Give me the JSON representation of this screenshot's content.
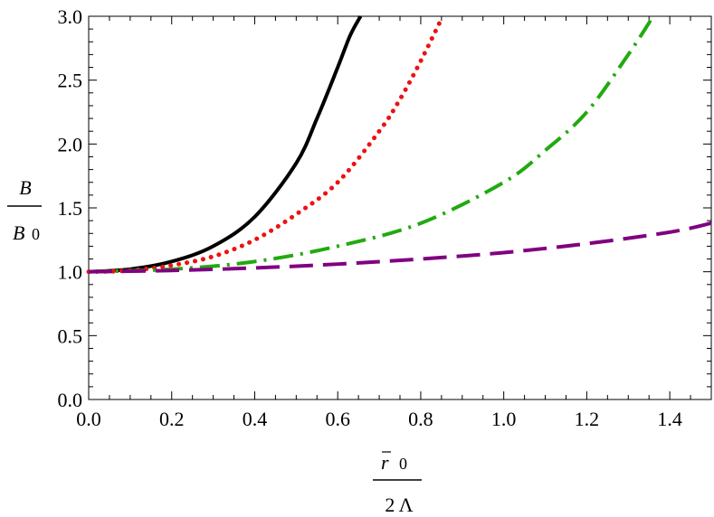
{
  "chart_data": {
    "type": "line",
    "xlim": [
      0.0,
      1.5
    ],
    "ylim": [
      0.0,
      3.0
    ],
    "x_ticks": [
      "0.0",
      "0.2",
      "0.4",
      "0.6",
      "0.8",
      "1.0",
      "1.2",
      "1.4"
    ],
    "y_ticks": [
      "0.0",
      "0.5",
      "1.0",
      "1.5",
      "2.0",
      "2.5",
      "3.0"
    ],
    "ylabel": {
      "numerator": "B",
      "denominator": "B",
      "denominator_sub": "0"
    },
    "xlabel": {
      "numerator": "r",
      "numerator_sub": "0",
      "denominator": "2 Λ"
    },
    "grid": false,
    "frame": "box",
    "series": [
      {
        "style": "solid",
        "color": "#000000",
        "x": [
          0.0,
          0.1,
          0.2,
          0.3,
          0.4,
          0.5,
          0.55,
          0.6,
          0.63,
          0.655
        ],
        "y": [
          1.0,
          1.02,
          1.08,
          1.2,
          1.43,
          1.85,
          2.2,
          2.6,
          2.85,
          3.0
        ]
      },
      {
        "style": "dotted",
        "color": "#ee1111",
        "x": [
          0.0,
          0.1,
          0.2,
          0.3,
          0.4,
          0.5,
          0.6,
          0.7,
          0.75,
          0.8,
          0.85
        ],
        "y": [
          1.0,
          1.01,
          1.05,
          1.12,
          1.25,
          1.45,
          1.7,
          2.1,
          2.35,
          2.65,
          2.98
        ]
      },
      {
        "style": "dash-dot",
        "color": "#22aa11",
        "x": [
          0.0,
          0.2,
          0.4,
          0.6,
          0.8,
          1.0,
          1.1,
          1.2,
          1.3,
          1.36
        ],
        "y": [
          1.0,
          1.02,
          1.08,
          1.2,
          1.38,
          1.7,
          1.95,
          2.25,
          2.7,
          3.0
        ]
      },
      {
        "style": "dashed",
        "color": "#800080",
        "x": [
          0.0,
          0.2,
          0.4,
          0.6,
          0.8,
          1.0,
          1.2,
          1.4,
          1.5
        ],
        "y": [
          1.0,
          1.01,
          1.03,
          1.06,
          1.1,
          1.15,
          1.22,
          1.31,
          1.38
        ]
      }
    ]
  }
}
